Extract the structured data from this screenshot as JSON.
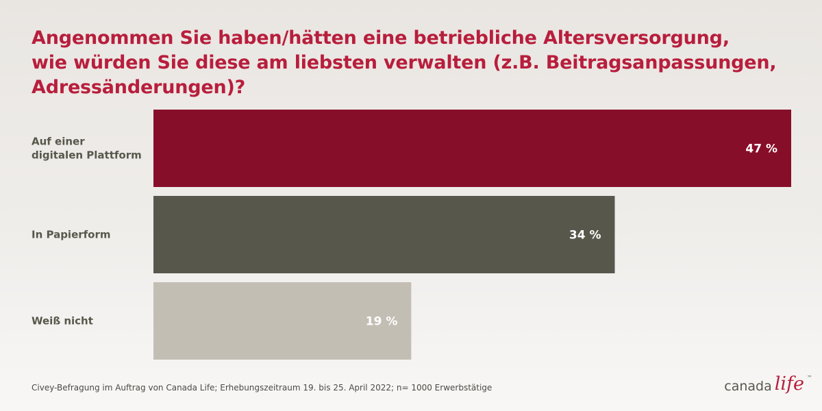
{
  "title_lines": [
    "Angenommen Sie haben/hätten eine betriebliche Altersversorgung,",
    "wie würden Sie diese am liebsten verwalten (z.B. Beitragsanpassungen,",
    "Adressänderungen)?"
  ],
  "chart_data": {
    "type": "bar",
    "orientation": "horizontal",
    "categories": [
      [
        "Auf einer",
        "digitalen Plattform"
      ],
      [
        "In Papierform"
      ],
      [
        "Weiß nicht"
      ]
    ],
    "values": [
      47,
      34,
      19
    ],
    "value_labels": [
      "47 %",
      "34 %",
      "19 %"
    ],
    "unit": "%",
    "xlim": [
      0,
      47
    ],
    "grid": false,
    "legend": "none",
    "bar_colors": [
      "#870e28",
      "#58574b",
      "#c3beb4"
    ],
    "label_color": "#58574b",
    "value_label_color": "#ffffff"
  },
  "footnote": "Civey-Befragung im Auftrag von Canada Life; Erhebungszeitraum 19. bis 25. April 2022; n= 1000 Erwerbstätige",
  "logo": {
    "word1": "canada",
    "word2": "life",
    "tm": "™"
  }
}
